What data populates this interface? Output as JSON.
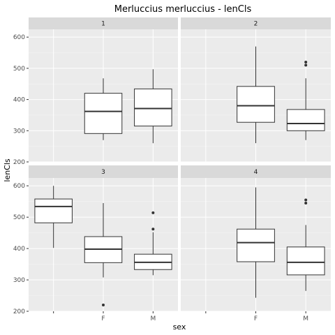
{
  "chart_data": {
    "type": "boxplot",
    "title": "Merluccius merluccius - lenCls",
    "xlabel": "sex",
    "ylabel": "lenCls",
    "facet_layout": "2x2 grid",
    "categories": [
      "",
      "F",
      "M"
    ],
    "x_tick_labels": [
      "",
      "F",
      "M"
    ],
    "y_ticks": [
      200,
      300,
      400,
      500,
      600
    ],
    "y_tick_labels": [
      "200",
      "300",
      "400",
      "500",
      "600"
    ],
    "ylim": [
      200,
      625
    ],
    "grid": true,
    "colors": {
      "panel_bg": "#ebebeb",
      "strip_bg": "#d9d9d9",
      "grid": "#ffffff",
      "box_fill": "#ffffff",
      "box_line": "#333333"
    },
    "panels": [
      {
        "label": "1",
        "boxes": [
          {
            "category": "F",
            "min": 270,
            "q1": 291,
            "median": 362,
            "q3": 420,
            "max": 468,
            "outliers": []
          },
          {
            "category": "M",
            "min": 260,
            "q1": 315,
            "median": 371,
            "q3": 434,
            "max": 497,
            "outliers": []
          }
        ]
      },
      {
        "label": "2",
        "boxes": [
          {
            "category": "F",
            "min": 260,
            "q1": 327,
            "median": 380,
            "q3": 442,
            "max": 570,
            "outliers": []
          },
          {
            "category": "M",
            "min": 270,
            "q1": 300,
            "median": 323,
            "q3": 368,
            "max": 468,
            "outliers": [
              510,
              520
            ]
          }
        ]
      },
      {
        "label": "3",
        "boxes": [
          {
            "category": "",
            "min": 402,
            "q1": 482,
            "median": 534,
            "q3": 558,
            "max": 600,
            "outliers": []
          },
          {
            "category": "F",
            "min": 308,
            "q1": 355,
            "median": 398,
            "q3": 438,
            "max": 545,
            "outliers": [
              220
            ]
          },
          {
            "category": "M",
            "min": 315,
            "q1": 333,
            "median": 356,
            "q3": 382,
            "max": 452,
            "outliers": [
              462,
              514
            ]
          }
        ]
      },
      {
        "label": "4",
        "boxes": [
          {
            "category": "F",
            "min": 243,
            "q1": 358,
            "median": 419,
            "q3": 462,
            "max": 595,
            "outliers": []
          },
          {
            "category": "M",
            "min": 265,
            "q1": 316,
            "median": 356,
            "q3": 405,
            "max": 475,
            "outliers": [
              545,
              555
            ]
          }
        ]
      }
    ]
  }
}
